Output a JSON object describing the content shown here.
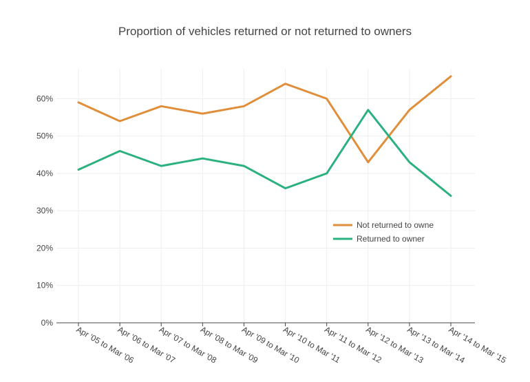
{
  "chart_data": {
    "type": "line",
    "title": "Proportion of vehicles returned or not returned to owners",
    "xlabel": "",
    "ylabel": "",
    "categories": [
      "Apr '05 to Mar '06",
      "Apr '06 to Mar '07",
      "Apr '07 to Mar '08",
      "Apr '08 to Mar '09",
      "Apr '09 to Mar '10",
      "Apr '10 to Mar '11",
      "Apr '11 to Mar '12",
      "Apr '12 to Mar '13",
      "Apr '13 to Mar '14",
      "Apr '14 to Mar '15"
    ],
    "y_ticks": [
      "0%",
      "10%",
      "20%",
      "30%",
      "40%",
      "50%",
      "60%"
    ],
    "ylim": [
      0,
      68
    ],
    "grid": true,
    "legend_position": "right",
    "series": [
      {
        "name": "Not returned to owne",
        "color": "#e08e3a",
        "values": [
          59,
          54,
          58,
          56,
          58,
          64,
          60,
          43,
          57,
          66
        ]
      },
      {
        "name": "Returned to owner",
        "color": "#2bb07f",
        "values": [
          41,
          46,
          42,
          44,
          42,
          36,
          40,
          57,
          43,
          34
        ]
      }
    ]
  }
}
